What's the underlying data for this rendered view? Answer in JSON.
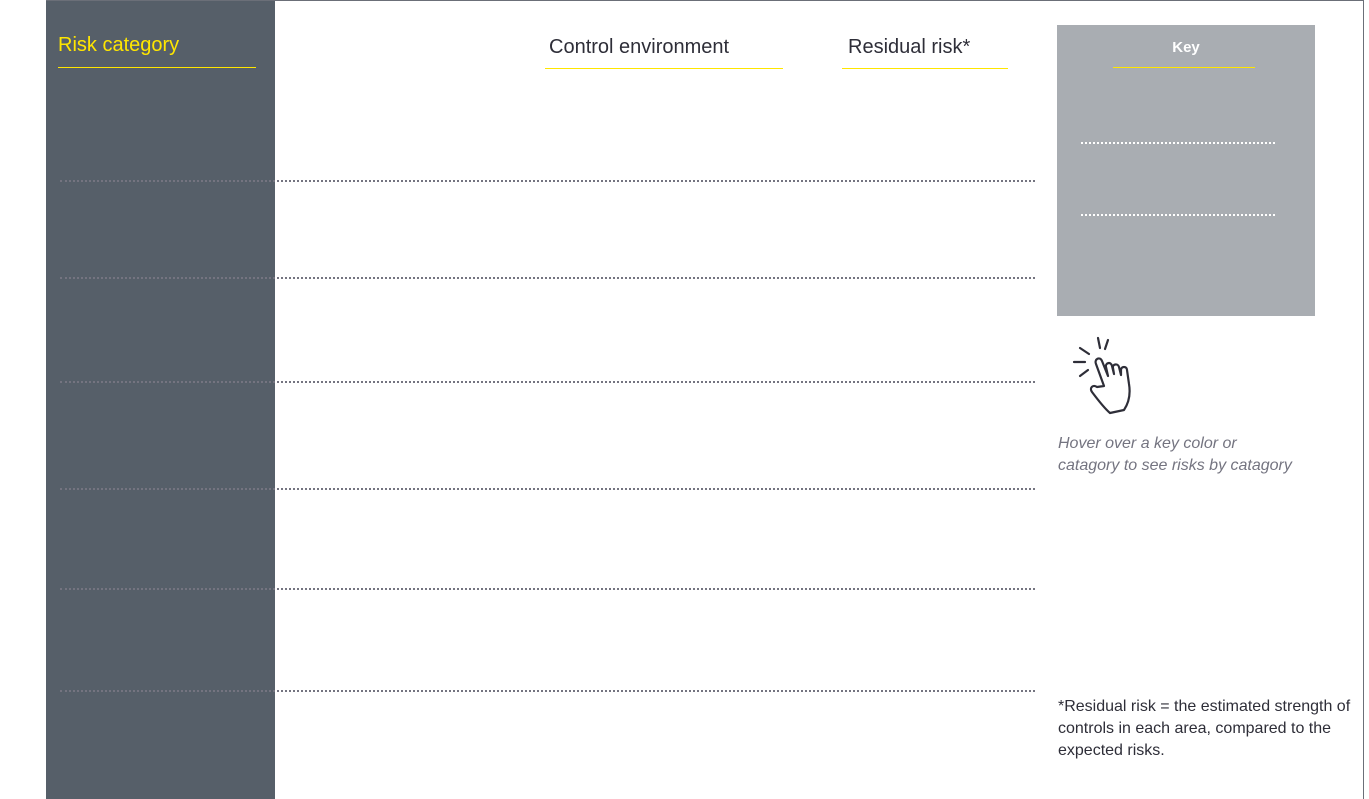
{
  "sidebar": {
    "title": "Risk category",
    "color": "#565f69",
    "accent": "#ffe600"
  },
  "columns": [
    {
      "label": "Control environment"
    },
    {
      "label": "Residual risk*"
    }
  ],
  "key": {
    "title": "Key",
    "background": "#a9adb2"
  },
  "hint": {
    "icon": "hand-pointer-icon",
    "text": "Hover over a key color or catagory to see risks by catagory"
  },
  "footnote": {
    "text": "*Residual risk = the estimated strength of controls in each area, compared to the expected risks."
  }
}
